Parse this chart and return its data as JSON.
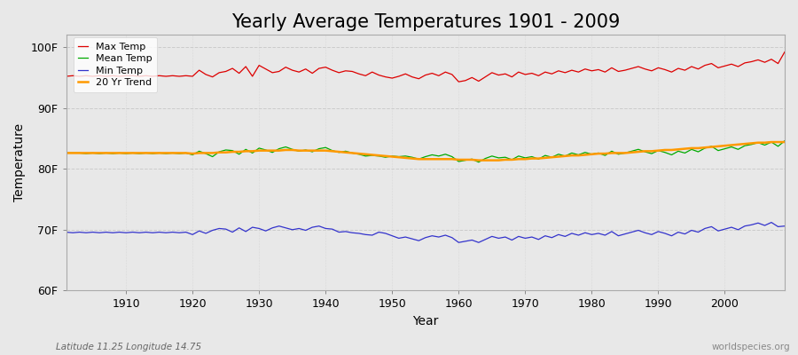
{
  "title": "Yearly Average Temperatures 1901 - 2009",
  "xlabel": "Year",
  "ylabel": "Temperature",
  "ylim": [
    60,
    102
  ],
  "yticks": [
    60,
    70,
    80,
    90,
    100
  ],
  "ytick_labels": [
    "60F",
    "70F",
    "80F",
    "90F",
    "100F"
  ],
  "xlim": [
    1901,
    2009
  ],
  "xticks": [
    1910,
    1920,
    1930,
    1940,
    1950,
    1960,
    1970,
    1980,
    1990,
    2000
  ],
  "years": [
    1901,
    1902,
    1903,
    1904,
    1905,
    1906,
    1907,
    1908,
    1909,
    1910,
    1911,
    1912,
    1913,
    1914,
    1915,
    1916,
    1917,
    1918,
    1919,
    1920,
    1921,
    1922,
    1923,
    1924,
    1925,
    1926,
    1927,
    1928,
    1929,
    1930,
    1931,
    1932,
    1933,
    1934,
    1935,
    1936,
    1937,
    1938,
    1939,
    1940,
    1941,
    1942,
    1943,
    1944,
    1945,
    1946,
    1947,
    1948,
    1949,
    1950,
    1951,
    1952,
    1953,
    1954,
    1955,
    1956,
    1957,
    1958,
    1959,
    1960,
    1961,
    1962,
    1963,
    1964,
    1965,
    1966,
    1967,
    1968,
    1969,
    1970,
    1971,
    1972,
    1973,
    1974,
    1975,
    1976,
    1977,
    1978,
    1979,
    1980,
    1981,
    1982,
    1983,
    1984,
    1985,
    1986,
    1987,
    1988,
    1989,
    1990,
    1991,
    1992,
    1993,
    1994,
    1995,
    1996,
    1997,
    1998,
    1999,
    2000,
    2001,
    2002,
    2003,
    2004,
    2005,
    2006,
    2007,
    2008,
    2009
  ],
  "max_temp": [
    95.2,
    95.3,
    95.2,
    95.3,
    95.2,
    95.3,
    95.2,
    95.3,
    95.2,
    95.3,
    95.3,
    95.2,
    95.3,
    95.2,
    95.3,
    95.2,
    95.3,
    95.2,
    95.3,
    95.2,
    96.2,
    95.5,
    95.1,
    95.8,
    96.0,
    96.5,
    95.7,
    96.8,
    95.2,
    97.0,
    96.4,
    95.8,
    96.0,
    96.7,
    96.2,
    95.9,
    96.4,
    95.7,
    96.5,
    96.7,
    96.2,
    95.8,
    96.1,
    96.0,
    95.6,
    95.3,
    95.9,
    95.4,
    95.1,
    94.9,
    95.2,
    95.6,
    95.1,
    94.8,
    95.4,
    95.7,
    95.3,
    95.9,
    95.5,
    94.3,
    94.5,
    95.0,
    94.4,
    95.1,
    95.8,
    95.4,
    95.6,
    95.1,
    95.9,
    95.5,
    95.7,
    95.3,
    95.9,
    95.6,
    96.1,
    95.8,
    96.2,
    95.9,
    96.4,
    96.1,
    96.3,
    95.9,
    96.6,
    96.0,
    96.2,
    96.5,
    96.8,
    96.4,
    96.1,
    96.6,
    96.3,
    95.9,
    96.5,
    96.2,
    96.8,
    96.4,
    97.0,
    97.3,
    96.6,
    96.9,
    97.2,
    96.8,
    97.4,
    97.6,
    97.9,
    97.5,
    98.0,
    97.3,
    99.2
  ],
  "mean_temp": [
    82.6,
    82.6,
    82.6,
    82.5,
    82.6,
    82.5,
    82.6,
    82.5,
    82.6,
    82.5,
    82.6,
    82.5,
    82.6,
    82.5,
    82.6,
    82.5,
    82.6,
    82.5,
    82.6,
    82.3,
    82.9,
    82.5,
    82.0,
    82.8,
    83.1,
    83.0,
    82.4,
    83.2,
    82.6,
    83.4,
    83.1,
    82.7,
    83.3,
    83.6,
    83.2,
    82.9,
    83.1,
    82.8,
    83.3,
    83.5,
    83.0,
    82.7,
    82.9,
    82.6,
    82.4,
    82.1,
    82.2,
    82.1,
    81.9,
    82.1,
    82.0,
    82.1,
    81.9,
    81.6,
    82.0,
    82.3,
    82.1,
    82.4,
    82.0,
    81.2,
    81.4,
    81.6,
    81.1,
    81.7,
    82.1,
    81.8,
    81.9,
    81.5,
    82.1,
    81.8,
    82.0,
    81.6,
    82.2,
    81.9,
    82.4,
    82.1,
    82.6,
    82.3,
    82.7,
    82.4,
    82.6,
    82.2,
    82.9,
    82.4,
    82.6,
    82.9,
    83.2,
    82.8,
    82.5,
    83.0,
    82.7,
    82.3,
    82.9,
    82.6,
    83.2,
    82.8,
    83.4,
    83.7,
    83.0,
    83.3,
    83.6,
    83.2,
    83.8,
    84.0,
    84.3,
    83.9,
    84.4,
    83.7,
    84.6
  ],
  "min_temp": [
    69.6,
    69.5,
    69.6,
    69.5,
    69.6,
    69.5,
    69.6,
    69.5,
    69.6,
    69.5,
    69.6,
    69.5,
    69.6,
    69.5,
    69.6,
    69.5,
    69.6,
    69.5,
    69.6,
    69.2,
    69.8,
    69.4,
    69.9,
    70.2,
    70.1,
    69.6,
    70.3,
    69.7,
    70.4,
    70.2,
    69.8,
    70.3,
    70.6,
    70.3,
    70.0,
    70.2,
    69.9,
    70.4,
    70.6,
    70.2,
    70.1,
    69.6,
    69.7,
    69.5,
    69.4,
    69.2,
    69.1,
    69.6,
    69.4,
    69.0,
    68.6,
    68.8,
    68.5,
    68.2,
    68.7,
    69.0,
    68.8,
    69.1,
    68.7,
    67.9,
    68.1,
    68.3,
    67.9,
    68.4,
    68.9,
    68.6,
    68.8,
    68.3,
    68.9,
    68.6,
    68.8,
    68.4,
    69.0,
    68.7,
    69.2,
    68.9,
    69.4,
    69.1,
    69.5,
    69.2,
    69.4,
    69.1,
    69.7,
    69.0,
    69.3,
    69.6,
    69.9,
    69.5,
    69.2,
    69.7,
    69.4,
    69.0,
    69.6,
    69.3,
    69.9,
    69.6,
    70.2,
    70.5,
    69.8,
    70.1,
    70.4,
    70.0,
    70.6,
    70.8,
    71.1,
    70.7,
    71.2,
    70.5,
    70.6
  ],
  "trend_temp": [
    82.6,
    82.6,
    82.6,
    82.6,
    82.6,
    82.6,
    82.6,
    82.6,
    82.6,
    82.6,
    82.6,
    82.6,
    82.6,
    82.6,
    82.6,
    82.6,
    82.6,
    82.6,
    82.6,
    82.5,
    82.6,
    82.6,
    82.6,
    82.7,
    82.7,
    82.8,
    82.8,
    82.9,
    82.9,
    83.0,
    83.0,
    83.0,
    83.0,
    83.1,
    83.1,
    83.0,
    83.0,
    83.0,
    83.0,
    83.0,
    82.9,
    82.8,
    82.7,
    82.6,
    82.5,
    82.4,
    82.3,
    82.2,
    82.1,
    82.0,
    81.9,
    81.8,
    81.7,
    81.6,
    81.6,
    81.6,
    81.6,
    81.6,
    81.6,
    81.5,
    81.5,
    81.5,
    81.4,
    81.4,
    81.4,
    81.4,
    81.5,
    81.5,
    81.6,
    81.6,
    81.7,
    81.7,
    81.8,
    81.9,
    82.0,
    82.1,
    82.2,
    82.2,
    82.3,
    82.4,
    82.5,
    82.5,
    82.6,
    82.6,
    82.6,
    82.7,
    82.8,
    82.9,
    82.9,
    83.0,
    83.1,
    83.1,
    83.2,
    83.3,
    83.4,
    83.4,
    83.5,
    83.6,
    83.7,
    83.8,
    83.9,
    84.0,
    84.1,
    84.2,
    84.3,
    84.3,
    84.4,
    84.4,
    84.4
  ],
  "max_color": "#dd0000",
  "mean_color": "#00aa00",
  "min_color": "#3333cc",
  "trend_color": "#ff9900",
  "background_color": "#e8e8e8",
  "plot_bg_color": "#e8e8e8",
  "grid_color": "#cccccc",
  "legend_labels": [
    "Max Temp",
    "Mean Temp",
    "Min Temp",
    "20 Yr Trend"
  ],
  "footnote_left": "Latitude 11.25 Longitude 14.75",
  "footnote_right": "worldspecies.org",
  "title_fontsize": 15,
  "axis_fontsize": 10,
  "tick_fontsize": 9
}
